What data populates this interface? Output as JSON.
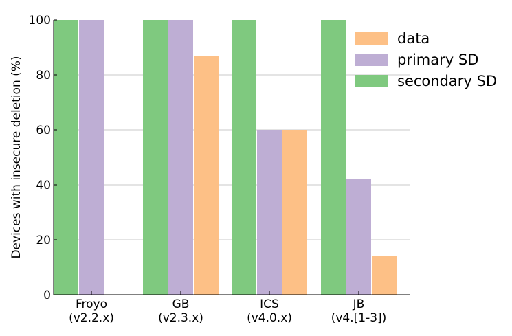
{
  "chart_data": {
    "type": "bar",
    "categories": [
      [
        "Froyo",
        "(v2.2.x)"
      ],
      [
        "GB",
        "(v2.3.x)"
      ],
      [
        "ICS",
        "(v4.0.x)"
      ],
      [
        "JB",
        "(v4.[1-3])"
      ]
    ],
    "series": [
      {
        "name": "secondary SD",
        "color": "#7fc97f",
        "values": [
          100,
          100,
          100,
          100
        ]
      },
      {
        "name": "primary SD",
        "color": "#beaed4",
        "values": [
          100,
          100,
          60,
          42
        ]
      },
      {
        "name": "data",
        "color": "#fdc086",
        "values": [
          0,
          87,
          60,
          14
        ]
      }
    ],
    "legend_order": [
      "data",
      "primary SD",
      "secondary SD"
    ],
    "ylabel": "Devices with insecure deletion (%)",
    "xlabel": "",
    "ylim": [
      0,
      100
    ],
    "yticks": [
      "0",
      "20",
      "40",
      "60",
      "80",
      "100"
    ],
    "grid": "horizontal",
    "legend_position": "top-right"
  }
}
